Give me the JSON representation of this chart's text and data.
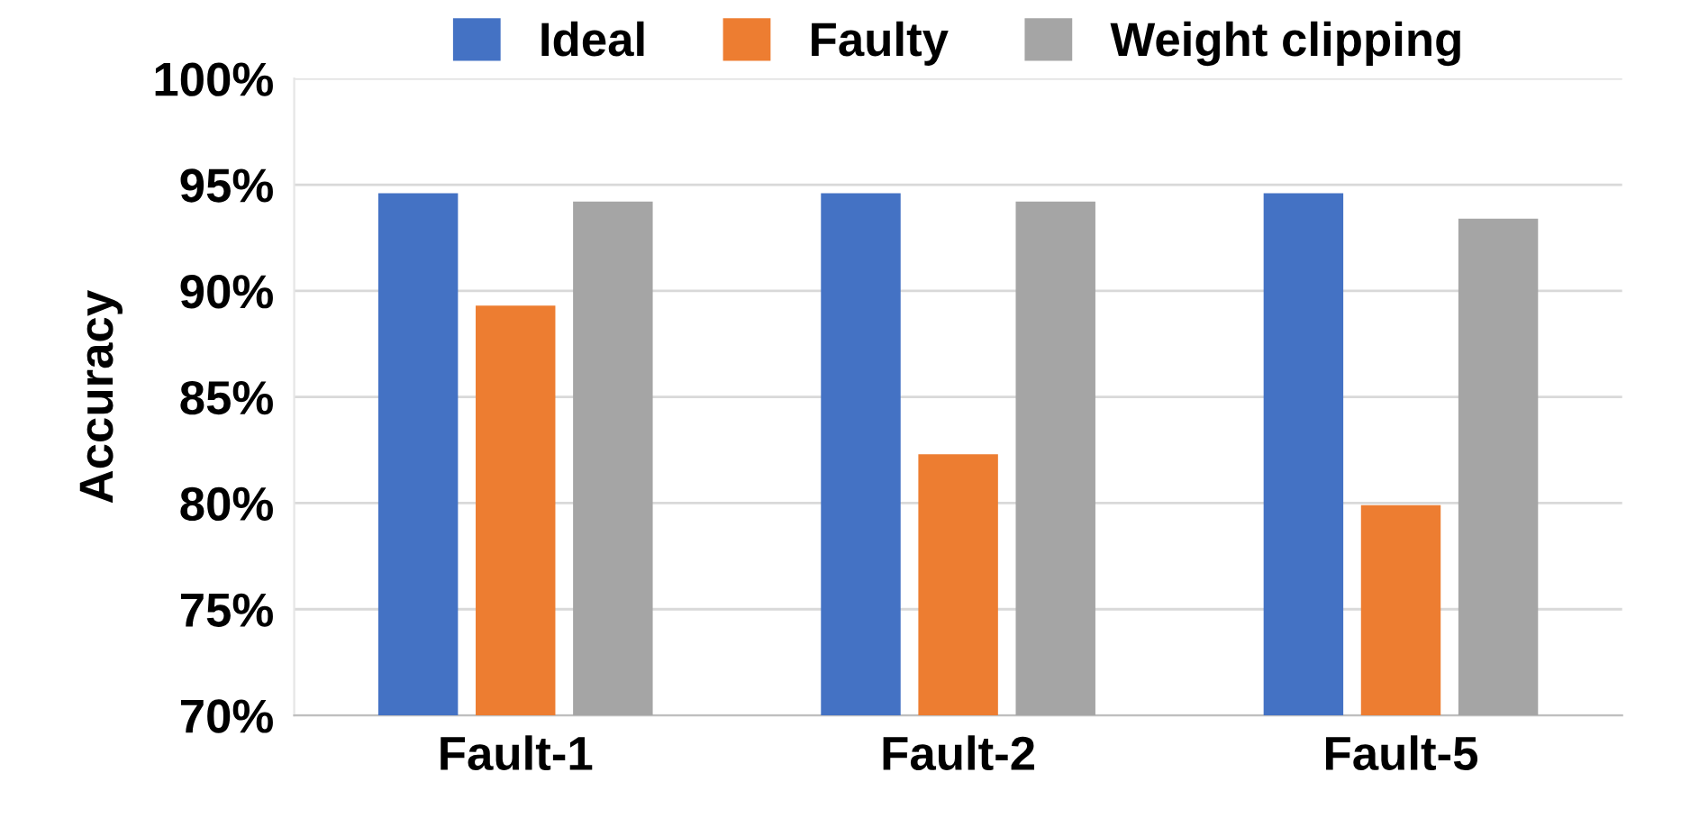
{
  "chart_data": {
    "type": "bar",
    "ylabel": "Accuracy",
    "categories": [
      "Fault-1",
      "Fault-2",
      "Fault-5"
    ],
    "series": [
      {
        "name": "Ideal",
        "color": "#4472c4",
        "values": [
          94.6,
          94.6,
          94.6
        ]
      },
      {
        "name": "Faulty",
        "color": "#ed7d31",
        "values": [
          89.3,
          82.3,
          79.9
        ]
      },
      {
        "name": "Weight clipping",
        "color": "#a5a5a5",
        "values": [
          94.2,
          94.2,
          93.4
        ]
      }
    ],
    "ylim": [
      70,
      100
    ],
    "yticks": [
      {
        "value": 70,
        "label": "70%"
      },
      {
        "value": 75,
        "label": "75%"
      },
      {
        "value": 80,
        "label": "80%"
      },
      {
        "value": 85,
        "label": "85%"
      },
      {
        "value": 90,
        "label": "90%"
      },
      {
        "value": 95,
        "label": "95%"
      },
      {
        "value": 100,
        "label": "100%"
      }
    ],
    "grid": "y",
    "legend": "top"
  }
}
